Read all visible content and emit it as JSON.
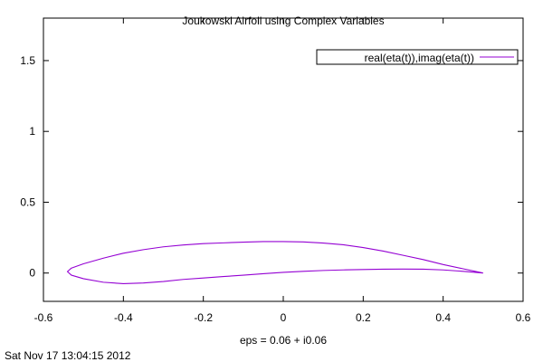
{
  "chart_data": {
    "type": "line",
    "title": "Joukowski Airfoil using Complex Variables",
    "xlabel": "eps = 0.06 + i0.06",
    "ylabel": "",
    "xlim": [
      -0.6,
      0.6
    ],
    "ylim": [
      -0.2,
      1.8
    ],
    "xticks": [
      -0.6,
      -0.4,
      -0.2,
      0,
      0.2,
      0.4,
      0.6
    ],
    "xtick_labels": [
      "-0.6",
      "-0.4",
      "-0.2",
      "0",
      "0.2",
      "0.4",
      "0.6"
    ],
    "yticks": [
      0,
      0.5,
      1,
      1.5
    ],
    "ytick_labels": [
      "0",
      "0.5",
      "1",
      "1.5"
    ],
    "grid": false,
    "legend_position": "top-right",
    "series": [
      {
        "name": "real(eta(t)),imag(eta(t))",
        "color": "#9400d3",
        "x": [
          0.5,
          0.45,
          0.4,
          0.35,
          0.3,
          0.25,
          0.2,
          0.15,
          0.1,
          0.05,
          0.0,
          -0.05,
          -0.1,
          -0.15,
          -0.2,
          -0.25,
          -0.3,
          -0.35,
          -0.4,
          -0.45,
          -0.5,
          -0.53,
          -0.54,
          -0.53,
          -0.5,
          -0.45,
          -0.4,
          -0.35,
          -0.3,
          -0.25,
          -0.2,
          -0.15,
          -0.1,
          -0.05,
          0.0,
          0.05,
          0.1,
          0.15,
          0.2,
          0.25,
          0.3,
          0.35,
          0.4,
          0.45,
          0.5
        ],
        "y": [
          0.0,
          0.03,
          0.06,
          0.095,
          0.125,
          0.155,
          0.18,
          0.2,
          0.212,
          0.22,
          0.222,
          0.222,
          0.218,
          0.213,
          0.208,
          0.198,
          0.185,
          0.165,
          0.14,
          0.105,
          0.065,
          0.035,
          0.01,
          -0.015,
          -0.04,
          -0.065,
          -0.075,
          -0.07,
          -0.06,
          -0.045,
          -0.035,
          -0.025,
          -0.015,
          -0.005,
          0.005,
          0.012,
          0.018,
          0.022,
          0.025,
          0.027,
          0.028,
          0.027,
          0.022,
          0.012,
          0.0
        ]
      }
    ]
  },
  "footer": {
    "timestamp": "Sat Nov 17 13:04:15 2012"
  }
}
